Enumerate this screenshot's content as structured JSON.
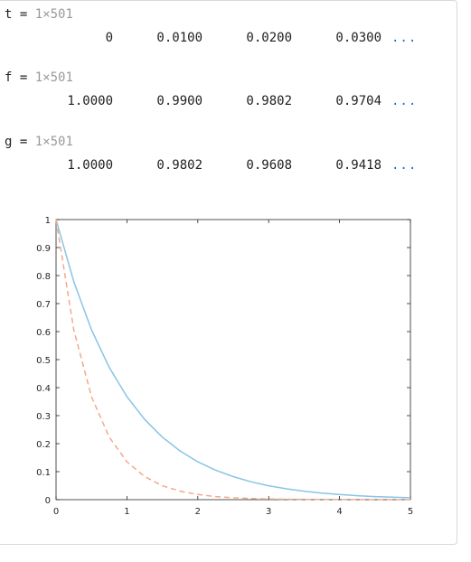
{
  "variables": [
    {
      "name": "t",
      "equals": "=",
      "size": "1×501",
      "values": [
        "0",
        "0.0100",
        "0.0200",
        "0.0300"
      ],
      "more": "..."
    },
    {
      "name": "f",
      "equals": "=",
      "size": "1×501",
      "values": [
        "1.0000",
        "0.9900",
        "0.9802",
        "0.9704"
      ],
      "more": "..."
    },
    {
      "name": "g",
      "equals": "=",
      "size": "1×501",
      "values": [
        "1.0000",
        "0.9802",
        "0.9608",
        "0.9418"
      ],
      "more": "..."
    }
  ],
  "colors": {
    "series_solid": "#89c4e6",
    "series_dashed": "#f4a98a",
    "ellipsis_link": "#0e6fc7",
    "dim_text": "#9a9a9a"
  },
  "chart_data": {
    "type": "line",
    "title": "",
    "xlabel": "",
    "ylabel": "",
    "xlim": [
      0,
      5
    ],
    "ylim": [
      0,
      1
    ],
    "xticks": [
      "0",
      "1",
      "2",
      "3",
      "4",
      "5"
    ],
    "yticks": [
      "0",
      "0.1",
      "0.2",
      "0.3",
      "0.4",
      "0.5",
      "0.6",
      "0.7",
      "0.8",
      "0.9",
      "1"
    ],
    "grid": false,
    "legend": "none",
    "series": [
      {
        "style": "solid",
        "color": "#89c4e6",
        "x": [
          0,
          0.25,
          0.5,
          0.75,
          1,
          1.25,
          1.5,
          1.75,
          2,
          2.25,
          2.5,
          2.75,
          3,
          3.25,
          3.5,
          3.75,
          4,
          4.25,
          4.5,
          4.75,
          5
        ],
        "values": [
          1.0,
          0.7788,
          0.6065,
          0.4724,
          0.3679,
          0.2865,
          0.2231,
          0.1738,
          0.1353,
          0.1054,
          0.0821,
          0.0639,
          0.0498,
          0.0388,
          0.0302,
          0.0235,
          0.0183,
          0.0143,
          0.0111,
          0.0087,
          0.0067
        ]
      },
      {
        "style": "dashed",
        "color": "#f4a98a",
        "x": [
          0,
          0.25,
          0.5,
          0.75,
          1,
          1.25,
          1.5,
          1.75,
          2,
          2.25,
          2.5,
          2.75,
          3,
          3.25,
          3.5,
          3.75,
          4,
          4.25,
          4.5,
          4.75,
          5
        ],
        "values": [
          1.0,
          0.6065,
          0.3679,
          0.2231,
          0.1353,
          0.0821,
          0.0498,
          0.0302,
          0.0183,
          0.0111,
          0.0067,
          0.0041,
          0.0025,
          0.0015,
          0.0009,
          0.0006,
          0.0003,
          0.0002,
          0.0001,
          0.0001,
          0.0
        ]
      }
    ]
  }
}
